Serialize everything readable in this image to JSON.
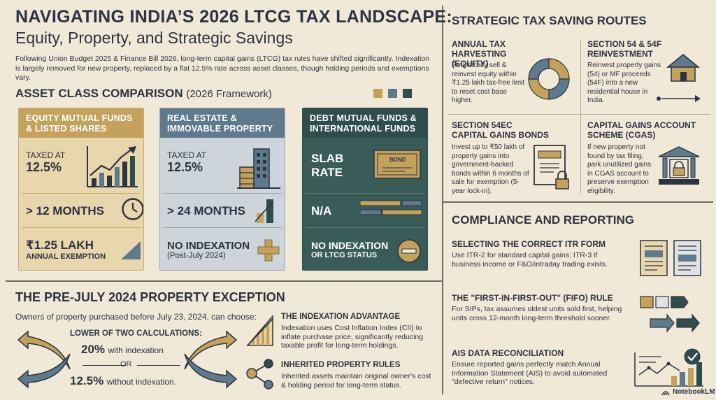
{
  "header": {
    "title": "NAVIGATING INDIA’S 2026 LTCG TAX LANDSCAPE:",
    "subtitle": "Equity, Property, and Strategic Savings",
    "intro": "Following Union Budget 2025 & Finance Bill 2026, long-term capital gains (LTCG) tax rules have shifted significantly. Indexation is largely removed for new property, replaced by a flat 12.5% rate across asset classes, though holding periods and exemptions vary."
  },
  "comparison": {
    "heading": "ASSET CLASS COMPARISON",
    "heading_sub": "(2026 Framework)",
    "swatches": [
      "#c4a25c",
      "#5f7a8c",
      "#2f4d4d"
    ],
    "cards": [
      {
        "title": "EQUITY MUTUAL FUNDS & LISTED SHARES",
        "row1_label": "TAXED AT",
        "row1_value": "12.5%",
        "row2_value": "> 12 MONTHS",
        "row3_value": "₹1.25 LAKH",
        "row3_sub": "ANNUAL EXEMPTION",
        "color": "#c4a25c"
      },
      {
        "title": "REAL ESTATE & IMMOVABLE PROPERTY",
        "row1_label": "TAXED AT",
        "row1_value": "12.5%",
        "row2_value": "> 24 MONTHS",
        "row3_value": "NO INDEXATION",
        "row3_sub": "(Post-July 2024)",
        "color": "#5f7a8c"
      },
      {
        "title": "DEBT MUTUAL FUNDS & INTERNATIONAL FUNDS",
        "row1_value": "SLAB RATE",
        "row2_value": "N/A",
        "row3_value": "NO INDEXATION",
        "row3_sub": "OR LTCG STATUS",
        "color": "#2f4d4d",
        "bond_label": "BOND"
      }
    ]
  },
  "exception": {
    "heading": "THE PRE-JULY 2024 PROPERTY EXCEPTION",
    "intro": "Owners of property purchased before July 23, 2024, can choose:",
    "calc_heading": "LOWER OF TWO CALCULATIONS:",
    "option1_value": "20%",
    "option1_text": "with indexation",
    "or_text": "OR",
    "option2_value": "12.5%",
    "option2_text": "without indexation.",
    "indexation_title": "THE INDEXATION ADVANTAGE",
    "indexation_text": "Indexation uses Cost Inflation Index (CII) to inflate purchase price, significantly reducing taxable profit for long-term holdings.",
    "inherited_title": "INHERITED PROPERTY RULES",
    "inherited_text": "Inherited assets maintain original owner's cost & holding period for long-term status."
  },
  "routes": {
    "heading": "STRATEGIC TAX SAVING ROUTES",
    "items": [
      {
        "title": "ANNUAL TAX HARVESTING (EQUITY)",
        "text": "Periodically sell & reinvest equity within ₹1.25 lakh tax-free limit to reset cost base higher."
      },
      {
        "title": "SECTION 54 & 54F REINVESTMENT",
        "text": "Reinvest property gains (54) or MF proceeds (54F) into a new residential house in India."
      },
      {
        "title": "SECTION 54EC CAPITAL GAINS BONDS",
        "text": "Invest up to ₹50 lakh of property gains into government-backed bonds within 6 months of sale for exemption (5-year lock-in)."
      },
      {
        "title": "CAPITAL GAINS ACCOUNT SCHEME (CGAS)",
        "text": "If new property not found by tax filing, park unutilized gains in CGAS account to preserve exemption eligibility."
      }
    ]
  },
  "compliance": {
    "heading": "COMPLIANCE AND REPORTING",
    "items": [
      {
        "title": "SELECTING THE CORRECT ITR FORM",
        "text": "Use ITR-2 for standard capital gains; ITR-3 if business income or F&O/intraday trading exists."
      },
      {
        "title": "THE \"FIRST-IN-FIRST-OUT\" (FIFO) RULE",
        "text": "For SIPs, tax assumes oldest units sold first, helping units cross 12-month long-term threshold sooner."
      },
      {
        "title": "AIS DATA RECONCILIATION",
        "text": "Ensure reported gains perfectly match Annual Information Statement (AIS) to avoid automated \"defective return\" notices."
      }
    ]
  },
  "footer": {
    "brand": "NotebookLM"
  },
  "colors": {
    "gold": "#c4a25c",
    "slate": "#5f7a8c",
    "teal": "#2f4d4d",
    "ink": "#2d3340",
    "bg": "#f1e9d8"
  }
}
